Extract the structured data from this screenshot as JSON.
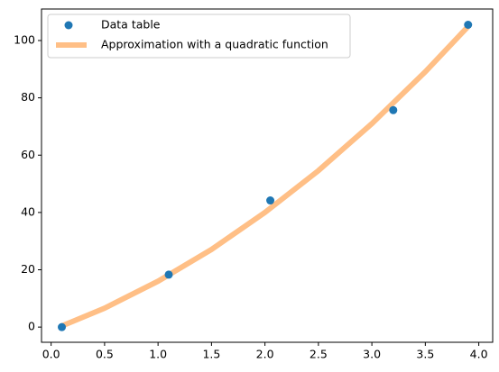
{
  "chart_data": {
    "type": "scatter",
    "series": [
      {
        "name": "Data table",
        "type": "scatter",
        "color": "#1f77b4",
        "x": [
          0.1,
          1.1,
          2.05,
          3.2,
          3.9
        ],
        "values": [
          0,
          18.3,
          44.2,
          75.7,
          105.5
        ]
      },
      {
        "name": "Approximation with a quadratic function",
        "type": "line",
        "color": "#ffbf86",
        "x": [
          0.1,
          0.5,
          1.0,
          1.5,
          2.0,
          2.5,
          3.0,
          3.5,
          3.9
        ],
        "values": [
          0.4,
          6.6,
          16.0,
          27.1,
          40.0,
          54.6,
          71.0,
          89.1,
          104.9
        ]
      }
    ],
    "xlim": [
      -0.09,
      4.13
    ],
    "ylim": [
      -5.3,
      111
    ],
    "xticks": [
      {
        "value": 0,
        "label": "0.0"
      },
      0.5,
      {
        "value": 1,
        "label": "1.0"
      },
      1.5,
      {
        "value": 2,
        "label": "2.0"
      },
      2.5,
      {
        "value": 3,
        "label": "3.0"
      },
      3.5,
      {
        "value": 4,
        "label": "4.0"
      }
    ],
    "yticks": [
      0,
      20,
      40,
      60,
      80,
      100
    ],
    "legend": "upper left"
  }
}
